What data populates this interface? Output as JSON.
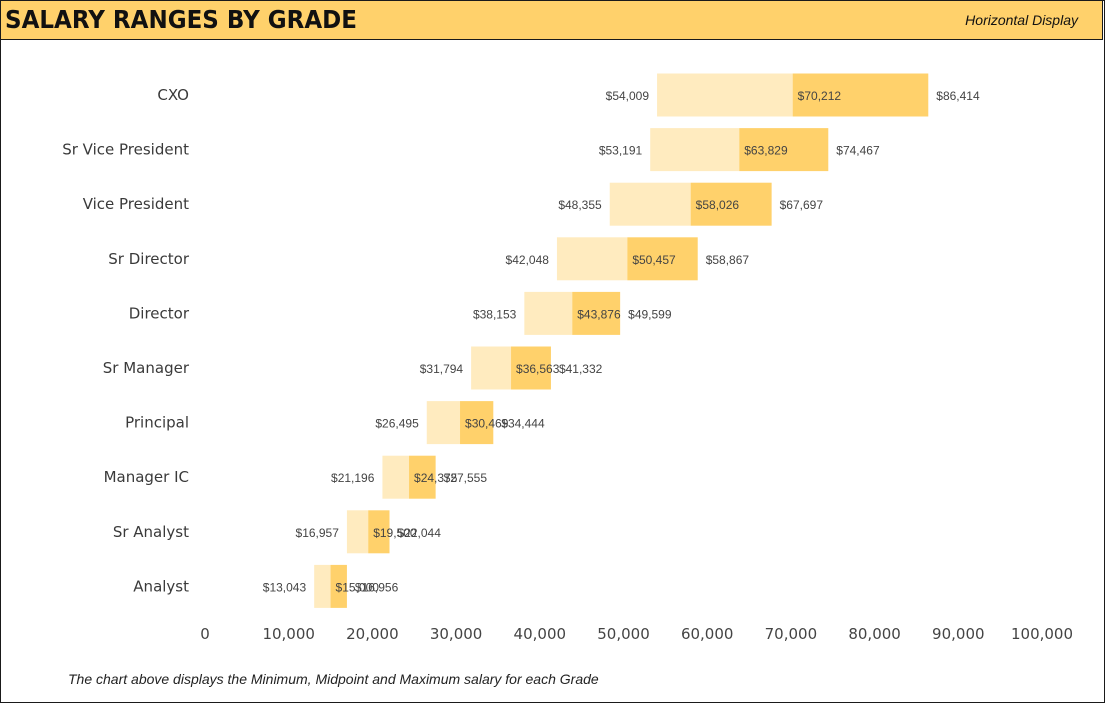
{
  "header": {
    "title": "SALARY RANGES BY GRADE",
    "subtitle": "Horizontal Display"
  },
  "footnote": "The chart above displays the Minimum, Midpoint and Maximum salary for each Grade",
  "colors": {
    "header_bg": "#ffd16b",
    "low_segment": "#ffebbf",
    "high_segment": "#ffd16b"
  },
  "chart_data": {
    "type": "bar",
    "orientation": "horizontal",
    "stacked_ranges": true,
    "title": "SALARY RANGES BY GRADE",
    "categories": [
      "CXO",
      "Sr Vice President",
      "Vice President",
      "Sr Director",
      "Director",
      "Sr Manager",
      "Principal",
      "Manager IC",
      "Sr Analyst",
      "Analyst"
    ],
    "series": [
      {
        "name": "Minimum",
        "values": [
          54009,
          53191,
          48355,
          42048,
          38153,
          31794,
          26495,
          21196,
          16957,
          13043
        ]
      },
      {
        "name": "Midpoint",
        "values": [
          70212,
          63829,
          58026,
          50457,
          43876,
          36563,
          30469,
          24375,
          19500,
          15000
        ]
      },
      {
        "name": "Maximum",
        "values": [
          86414,
          74467,
          67697,
          58867,
          49599,
          41332,
          34444,
          27555,
          22044,
          16956
        ]
      }
    ],
    "labels": {
      "min": [
        "$54,009",
        "$53,191",
        "$48,355",
        "$42,048",
        "$38,153",
        "$31,794",
        "$26,495",
        "$21,196",
        "$16,957",
        "$13,043"
      ],
      "mid": [
        "$70,212",
        "$63,829",
        "$58,026",
        "$50,457",
        "$43,876",
        "$36,563",
        "$30,469",
        "$24,375",
        "$19,500",
        "$15,000"
      ],
      "max": [
        "$86,414",
        "$74,467",
        "$67,697",
        "$58,867",
        "$49,599",
        "$41,332",
        "$34,444",
        "$27,555",
        "$22,044",
        "$16,956"
      ]
    },
    "xlim": [
      0,
      100000
    ],
    "xticks": [
      0,
      10000,
      20000,
      30000,
      40000,
      50000,
      60000,
      70000,
      80000,
      90000,
      100000
    ],
    "xtick_labels": [
      "0",
      "10,000",
      "20,000",
      "30,000",
      "40,000",
      "50,000",
      "60,000",
      "70,000",
      "80,000",
      "90,000",
      "100,000"
    ],
    "grid": false,
    "legend": "none"
  }
}
